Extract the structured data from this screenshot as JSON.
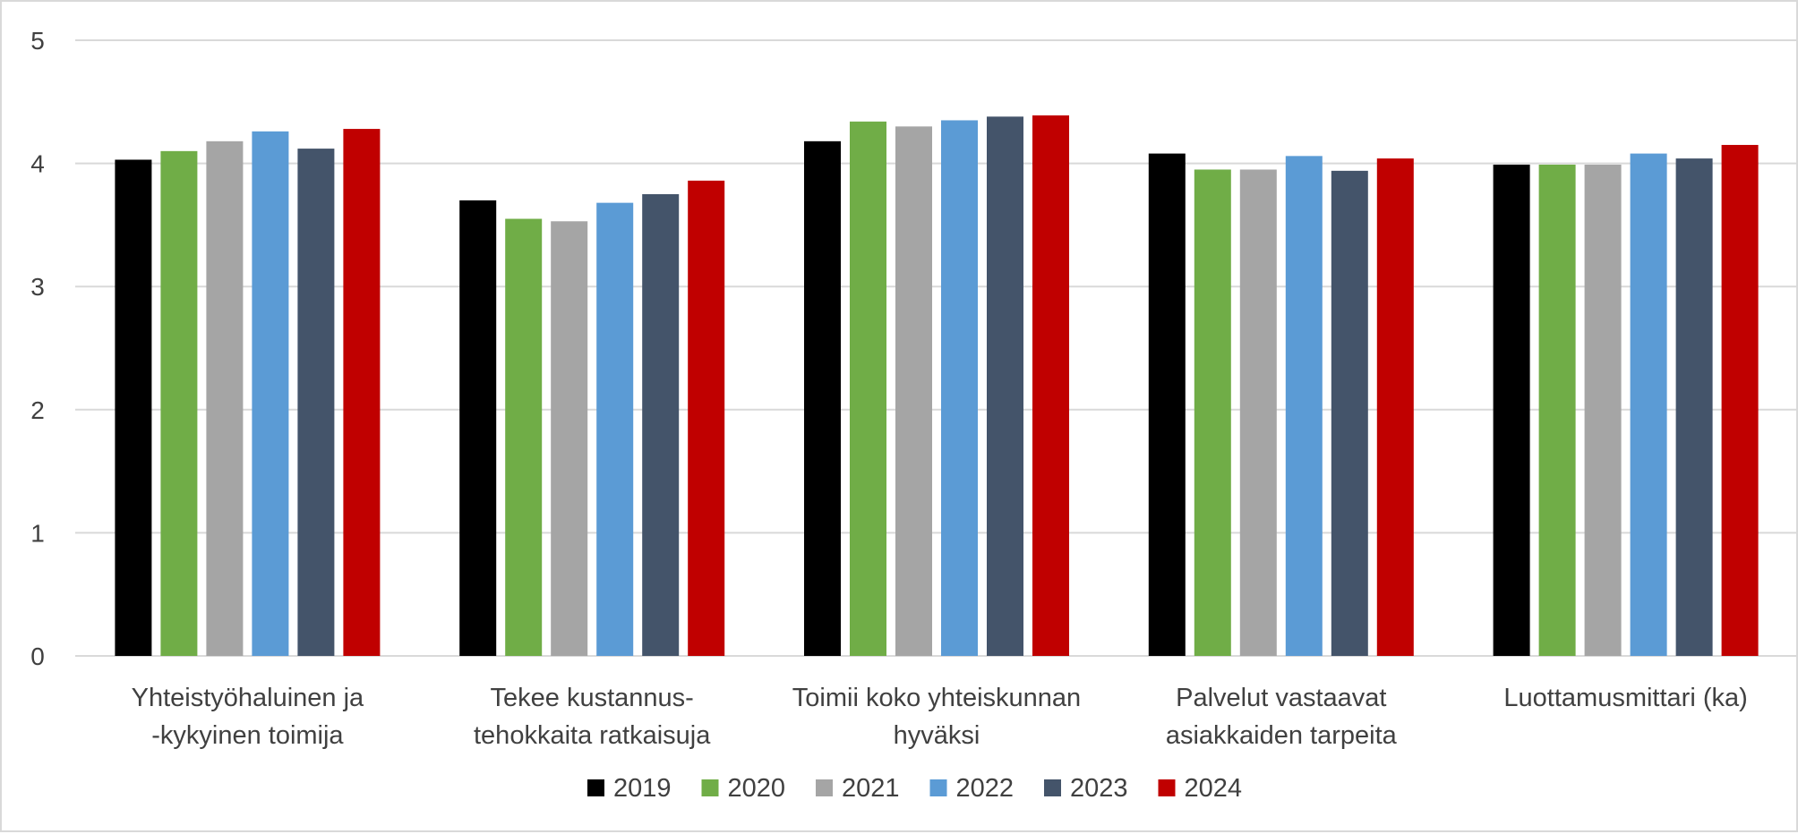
{
  "chart_data": {
    "type": "bar",
    "title": "",
    "xlabel": "",
    "ylabel": "",
    "ylim": [
      0,
      5
    ],
    "yticks": [
      0,
      1,
      2,
      3,
      4,
      5
    ],
    "grid": true,
    "legend_position": "bottom",
    "categories": [
      [
        "Yhteistyöhaluinen ja",
        "-kykyinen toimija"
      ],
      [
        "Tekee kustannus-",
        "tehokkaita ratkaisuja"
      ],
      [
        "Toimii koko yhteiskunnan",
        "hyväksi"
      ],
      [
        "Palvelut vastaavat",
        "asiakkaiden tarpeita"
      ],
      [
        "Luottamusmittari (ka)"
      ]
    ],
    "series": [
      {
        "name": "2019",
        "color": "#000000",
        "values": [
          4.03,
          3.7,
          4.18,
          4.08,
          3.99
        ]
      },
      {
        "name": "2020",
        "color": "#70ad47",
        "values": [
          4.1,
          3.55,
          4.34,
          3.95,
          3.99
        ]
      },
      {
        "name": "2021",
        "color": "#a5a5a5",
        "values": [
          4.18,
          3.53,
          4.3,
          3.95,
          3.99
        ]
      },
      {
        "name": "2022",
        "color": "#5b9bd5",
        "values": [
          4.26,
          3.68,
          4.35,
          4.06,
          4.08
        ]
      },
      {
        "name": "2023",
        "color": "#44546a",
        "values": [
          4.12,
          3.75,
          4.38,
          3.94,
          4.04
        ]
      },
      {
        "name": "2024",
        "color": "#c00000",
        "values": [
          4.28,
          3.86,
          4.39,
          4.04,
          4.15
        ]
      }
    ]
  }
}
